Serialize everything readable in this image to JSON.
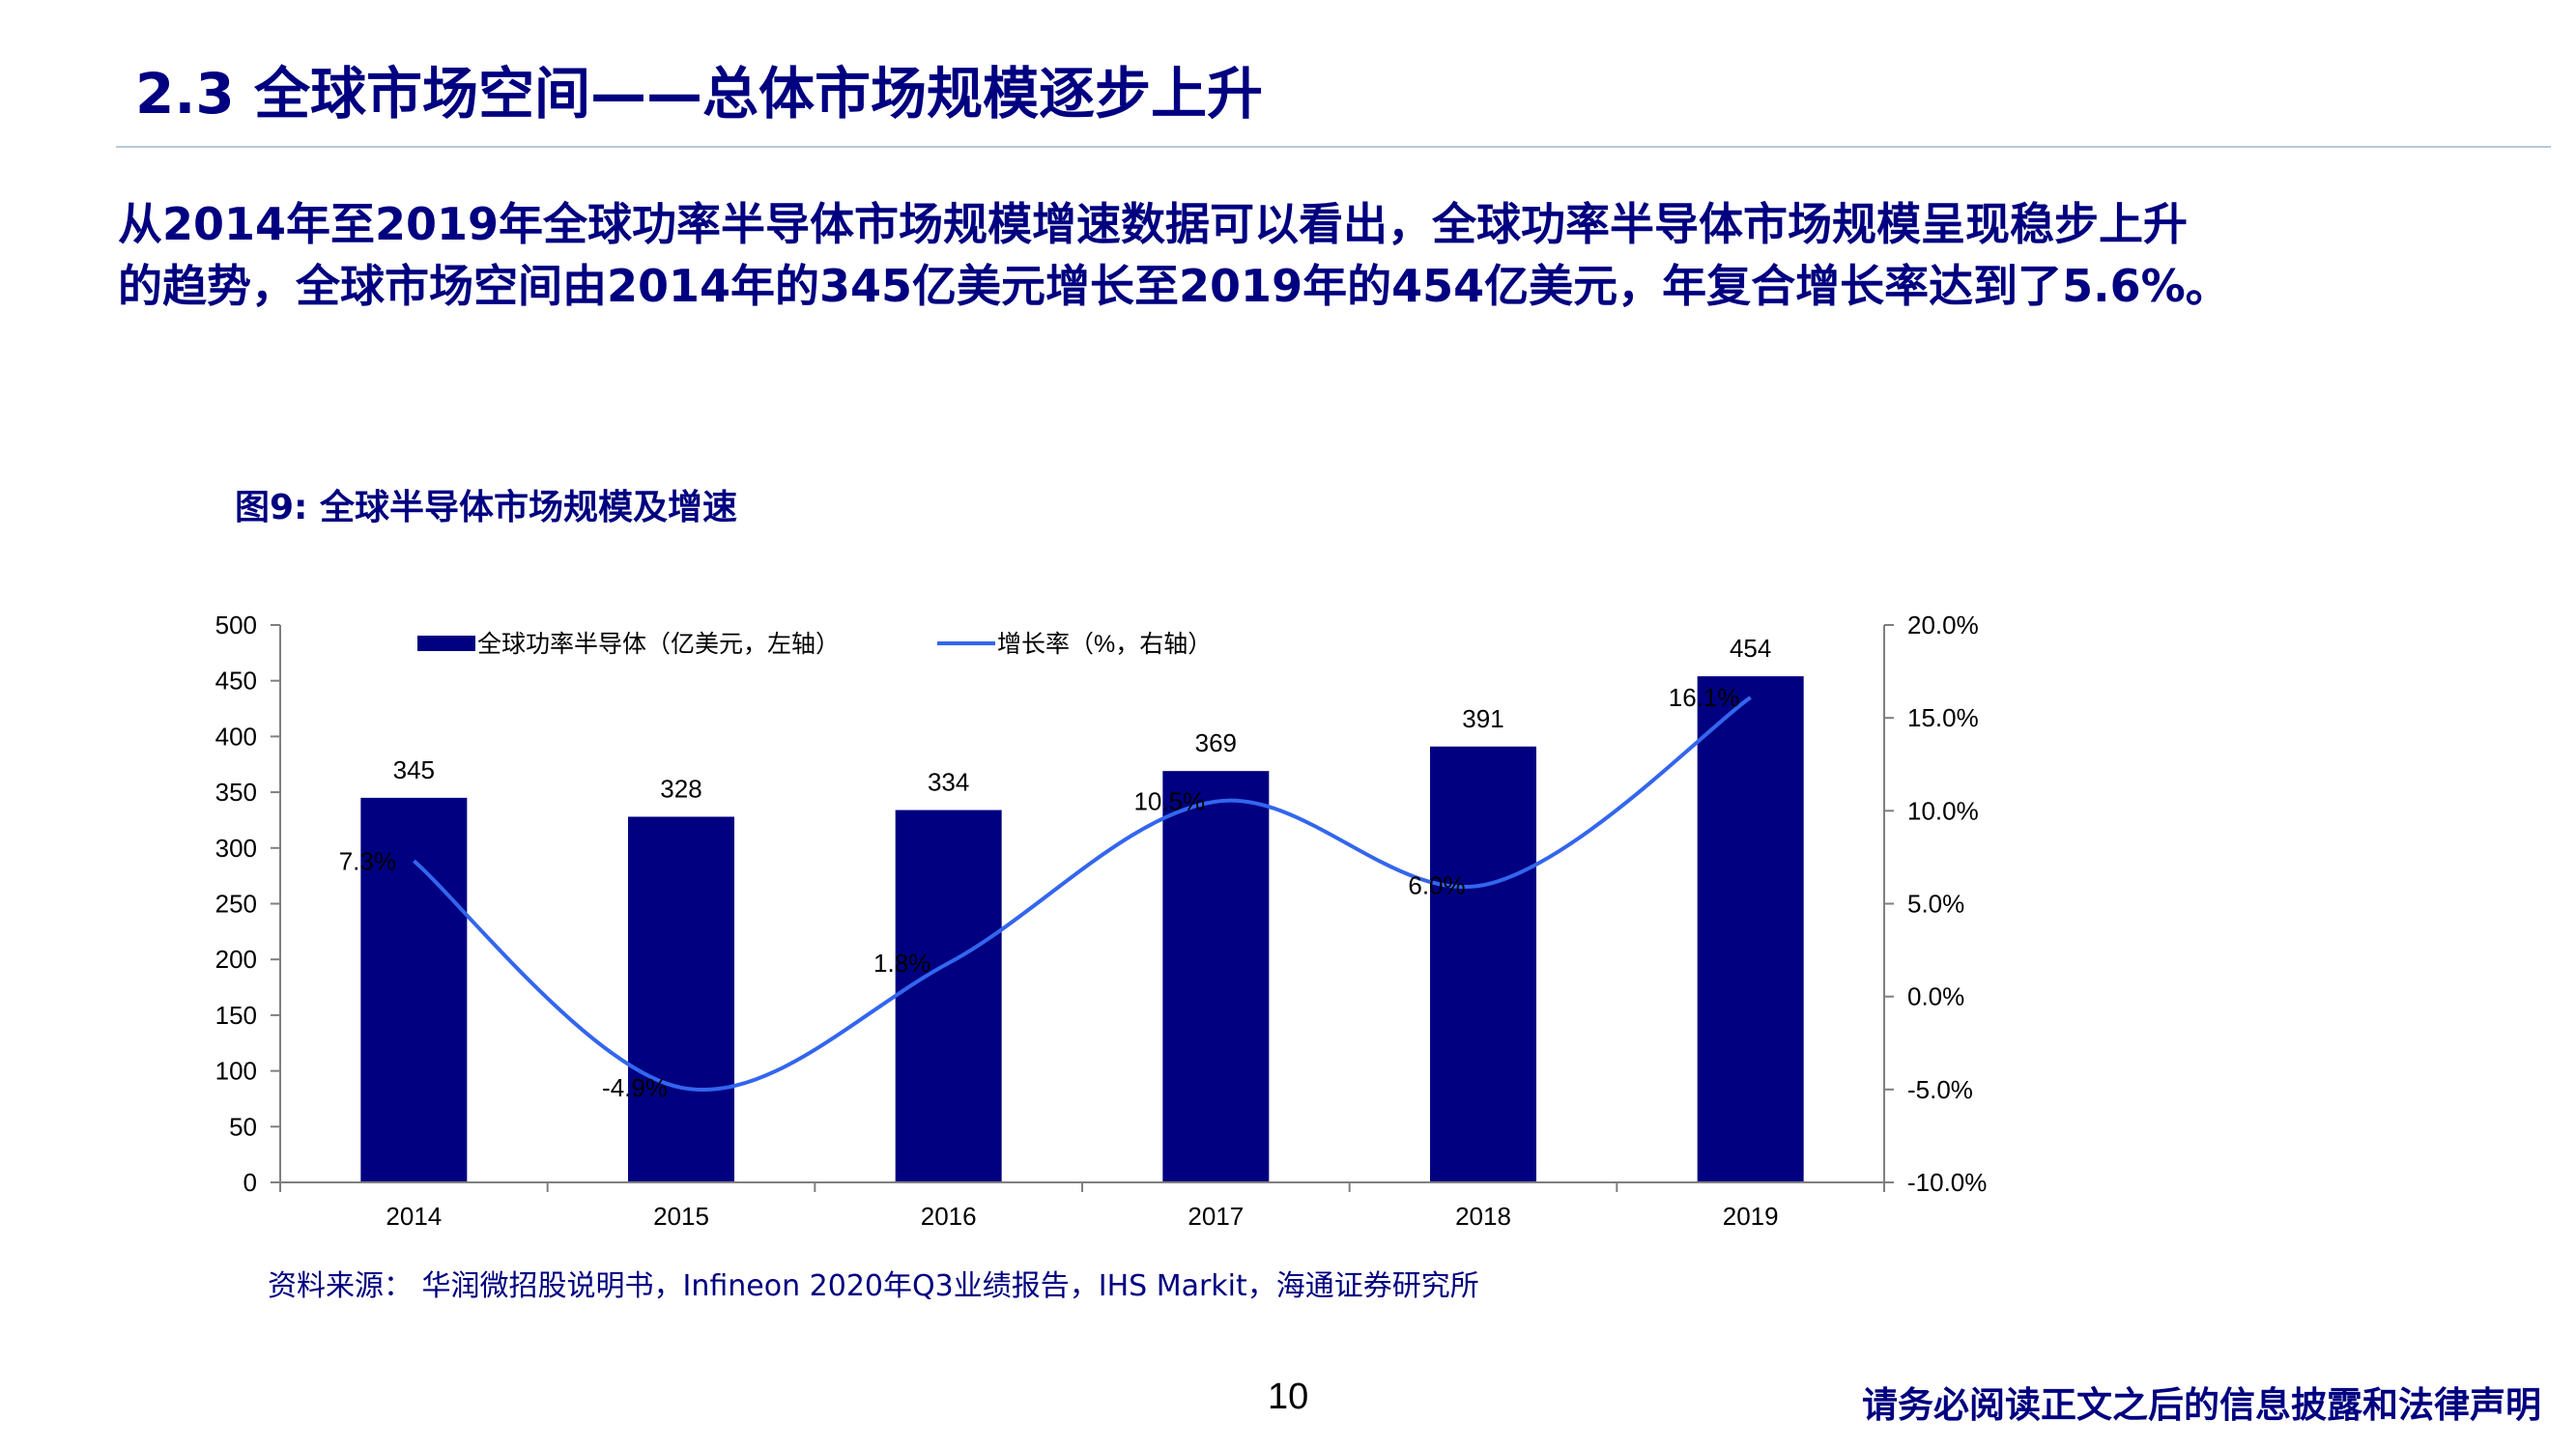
{
  "slide": {
    "title": "2.3 全球市场空间——总体市场规模逐步上升",
    "intro_line1": "从2014年至2019年全球功率半导体市场规模增速数据可以看出，全球功率半导体市场规模呈现稳步上升",
    "intro_line2": "的趋势，全球市场空间由2014年的345亿美元增长至2019年的454亿美元，年复合增长率达到了5.6%。",
    "figure_caption": "图9:  全球半导体市场规模及增速",
    "source": "资料来源：  华润微招股说明书，Infineon 2020年Q3业绩报告，IHS Markit，海通证券研究所",
    "page_number": "10",
    "disclaimer": "请务必阅读正文之后的信息披露和法律声明"
  },
  "colors": {
    "title": "#000080",
    "bar": "#000080",
    "line": "#3366ee",
    "axis": "#7f7f7f"
  },
  "chart_data": {
    "type": "bar",
    "categories": [
      "2014",
      "2015",
      "2016",
      "2017",
      "2018",
      "2019"
    ],
    "series": [
      {
        "name": "全球功率半导体（亿美元，左轴）",
        "type": "bar",
        "axis": "left",
        "values": [
          345,
          328,
          334,
          369,
          391,
          454
        ],
        "labels": [
          "345",
          "328",
          "334",
          "369",
          "391",
          "454"
        ]
      },
      {
        "name": "增长率（%，右轴）",
        "type": "line",
        "axis": "right",
        "values": [
          7.3,
          -4.9,
          1.8,
          10.5,
          6.0,
          16.1
        ],
        "labels": [
          "7.3%",
          "-4.9%",
          "1.8%",
          "10.5%",
          "6.0%",
          "16.1%"
        ]
      }
    ],
    "ylim": [
      0,
      500
    ],
    "y_ticks": [
      "0",
      "50",
      "100",
      "150",
      "200",
      "250",
      "300",
      "350",
      "400",
      "450",
      "500"
    ],
    "y2lim": [
      -10,
      20
    ],
    "y2_ticks": [
      "-10.0%",
      "-5.0%",
      "0.0%",
      "5.0%",
      "10.0%",
      "15.0%",
      "20.0%"
    ],
    "legend_position": "top",
    "grid": false
  }
}
